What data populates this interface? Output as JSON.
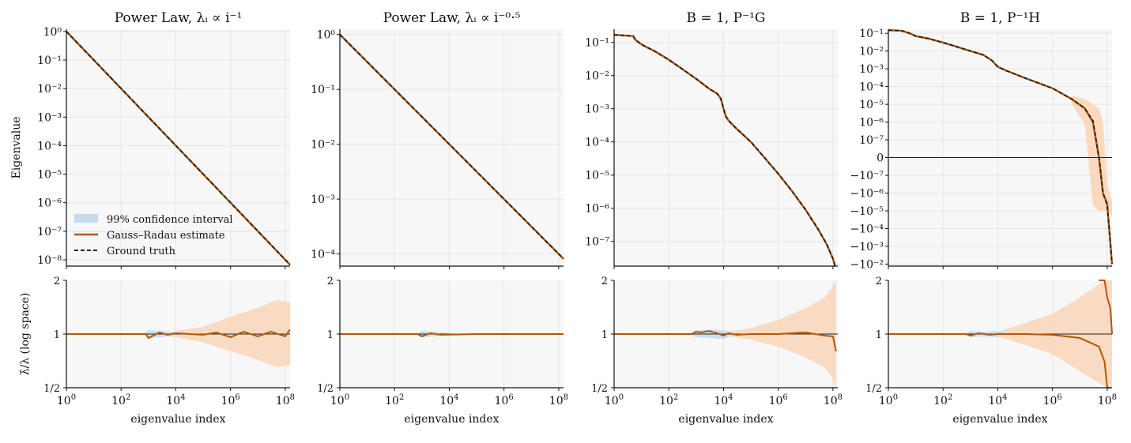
{
  "colors": {
    "estimate": "#b35806",
    "ground_truth": "#222222",
    "ci": "#c6dbef",
    "band": "#f9d5b8",
    "panel_bg": "#f7f7f7",
    "grid": "#e6e6e6"
  },
  "legend": {
    "ci_label": "99% confidence interval",
    "estimate_label": "Gauss–Radau estimate",
    "truth_label": "Ground truth"
  },
  "chart_data": [
    {
      "type": "line",
      "title": "Power Law, λᵢ ∝ i⁻¹",
      "xlabel": "eigenvalue index",
      "ylabel": "Eigenvalue",
      "xscale": "log",
      "yscale": "log",
      "xlim": [
        1,
        150000000
      ],
      "ylim": [
        6e-09,
        1.2
      ],
      "yticks": [
        {
          "v": 1,
          "l": "10⁰"
        },
        {
          "v": 0.1,
          "l": "10⁻¹"
        },
        {
          "v": 0.01,
          "l": "10⁻²"
        },
        {
          "v": 0.001,
          "l": "10⁻³"
        },
        {
          "v": 0.0001,
          "l": "10⁻⁴"
        },
        {
          "v": 1e-05,
          "l": "10⁻⁵"
        },
        {
          "v": 1e-06,
          "l": "10⁻⁶"
        },
        {
          "v": 1e-07,
          "l": "10⁻⁷"
        },
        {
          "v": 1e-08,
          "l": "10⁻⁸"
        }
      ],
      "series": [
        {
          "name": "Gauss–Radau estimate",
          "x": [
            1,
            150000000
          ],
          "y": [
            1,
            6.7e-09
          ]
        },
        {
          "name": "Ground truth",
          "x": [
            1,
            150000000
          ],
          "y": [
            1,
            6.7e-09
          ]
        }
      ],
      "ratio": {
        "ylabel": "λ̂/λ (log space)",
        "yticks": [
          "2",
          "1",
          "1/2"
        ],
        "estimate": {
          "x": [
            1,
            800,
            1000,
            1500,
            2500,
            5000,
            10000,
            30000,
            100000,
            300000,
            1000000,
            3000000,
            10000000,
            30000000,
            100000000,
            150000000
          ],
          "y": [
            1,
            1,
            0.95,
            0.98,
            1.02,
            0.99,
            1.01,
            1,
            0.99,
            1.02,
            0.96,
            1.03,
            0.97,
            1.03,
            0.97,
            1.06
          ]
        },
        "ci": {
          "x": [
            600,
            1000,
            3000,
            10000,
            30000
          ],
          "upper": [
            1.0,
            1.05,
            1.04,
            1.02,
            1.0
          ],
          "lower": [
            1.0,
            0.95,
            0.96,
            0.98,
            1.0
          ]
        },
        "band": {
          "x": [
            1000,
            10000,
            100000,
            1000000,
            10000000,
            50000000,
            150000000
          ],
          "upper": [
            1.0,
            1.04,
            1.1,
            1.25,
            1.4,
            1.55,
            1.5
          ],
          "lower": [
            1.0,
            0.96,
            0.9,
            0.8,
            0.72,
            0.65,
            0.67
          ]
        }
      }
    },
    {
      "type": "line",
      "title": "Power Law, λᵢ ∝ i⁻⁰·⁵",
      "xlabel": "eigenvalue index",
      "ylabel": "",
      "xscale": "log",
      "yscale": "log",
      "xlim": [
        1,
        150000000
      ],
      "ylim": [
        6e-05,
        1.25
      ],
      "yticks": [
        {
          "v": 1,
          "l": "10⁰"
        },
        {
          "v": 0.1,
          "l": "10⁻¹"
        },
        {
          "v": 0.01,
          "l": "10⁻²"
        },
        {
          "v": 0.001,
          "l": "10⁻³"
        },
        {
          "v": 0.0001,
          "l": "10⁻⁴"
        }
      ],
      "series": [
        {
          "name": "Gauss–Radau estimate",
          "x": [
            1,
            150000000
          ],
          "y": [
            1,
            8.16e-05
          ]
        },
        {
          "name": "Ground truth",
          "x": [
            1,
            150000000
          ],
          "y": [
            1,
            8.16e-05
          ]
        }
      ],
      "ratio": {
        "ylabel": "",
        "yticks": [
          "2",
          "1",
          "1/2"
        ],
        "estimate": {
          "x": [
            1,
            700,
            1000,
            2000,
            5000,
            100000,
            150000000
          ],
          "y": [
            1,
            1,
            0.97,
            1.01,
            0.99,
            1,
            1
          ]
        },
        "ci": {
          "x": [
            500,
            1000,
            3000,
            10000,
            20000
          ],
          "upper": [
            1.0,
            1.04,
            1.03,
            1.01,
            1.0
          ],
          "lower": [
            1.0,
            0.96,
            0.97,
            0.99,
            1.0
          ]
        },
        "band": {
          "x": [
            1,
            150000000
          ],
          "upper": [
            1.0,
            1.0
          ],
          "lower": [
            1.0,
            1.0
          ]
        }
      }
    },
    {
      "type": "line",
      "title": "B = 1,  P⁻¹G",
      "xlabel": "eigenvalue index",
      "ylabel": "",
      "xscale": "log",
      "yscale": "log",
      "xlim": [
        1,
        150000000
      ],
      "ylim": [
        1.8e-08,
        0.25
      ],
      "yticks": [
        {
          "v": 0.1,
          "l": "10⁻¹"
        },
        {
          "v": 0.01,
          "l": "10⁻²"
        },
        {
          "v": 0.001,
          "l": "10⁻³"
        },
        {
          "v": 0.0001,
          "l": "10⁻⁴"
        },
        {
          "v": 1e-05,
          "l": "10⁻⁵"
        },
        {
          "v": 1e-06,
          "l": "10⁻⁶"
        },
        {
          "v": 1e-07,
          "l": "10⁻⁷"
        }
      ],
      "series": [
        {
          "name": "Gauss–Radau estimate",
          "x": [
            1,
            3,
            5,
            6,
            8,
            12,
            30,
            100,
            300,
            1000,
            3000,
            6000,
            8000,
            10000,
            12000,
            15000,
            20000,
            30000,
            100000,
            300000,
            1000000,
            3000000,
            10000000,
            30000000,
            60000000,
            100000000,
            120000000
          ],
          "y": [
            0.17,
            0.16,
            0.155,
            0.12,
            0.1,
            0.08,
            0.055,
            0.03,
            0.016,
            0.008,
            0.004,
            0.0028,
            0.002,
            0.001,
            0.0006,
            0.00045,
            0.00035,
            0.00025,
            0.0001,
            3.5e-05,
            1.1e-05,
            3.5e-06,
            9e-07,
            2.2e-07,
            8e-08,
            3e-08,
            1.8e-08
          ]
        },
        {
          "name": "Ground truth",
          "x": [
            1,
            3,
            5,
            6,
            8,
            12,
            30,
            100,
            300,
            1000,
            3000,
            6000,
            8000,
            10000,
            12000,
            15000,
            20000,
            30000,
            100000,
            300000,
            1000000,
            3000000,
            10000000,
            30000000,
            60000000,
            100000000,
            120000000
          ],
          "y": [
            0.17,
            0.16,
            0.155,
            0.12,
            0.1,
            0.08,
            0.055,
            0.03,
            0.016,
            0.008,
            0.004,
            0.0028,
            0.002,
            0.001,
            0.0006,
            0.00045,
            0.00035,
            0.00025,
            0.0001,
            3.5e-05,
            1.1e-05,
            3.5e-06,
            9e-07,
            2.2e-07,
            8e-08,
            3e-08,
            1.8e-08
          ]
        }
      ],
      "ratio": {
        "ylabel": "",
        "yticks": [
          "2",
          "1",
          "1/2"
        ],
        "estimate": {
          "x": [
            1,
            700,
            1000,
            1500,
            3000,
            6000,
            10000,
            15000,
            30000,
            100000,
            1000000,
            10000000,
            50000000,
            100000000,
            130000000
          ],
          "y": [
            1,
            1,
            1.03,
            1.02,
            1.04,
            1.01,
            0.98,
            1.01,
            0.99,
            1,
            1,
            1.02,
            0.98,
            0.97,
            0.8
          ]
        },
        "ci": {
          "x": [
            500,
            1000,
            3000,
            10000,
            30000
          ],
          "upper": [
            1.0,
            1.05,
            1.06,
            1.05,
            1.0
          ],
          "lower": [
            1.0,
            0.96,
            0.95,
            0.94,
            1.0
          ]
        },
        "band": {
          "x": [
            1000,
            10000,
            100000,
            1000000,
            10000000,
            50000000,
            100000000,
            130000000
          ],
          "upper": [
            1.0,
            1.02,
            1.08,
            1.2,
            1.4,
            1.6,
            1.85,
            2.0
          ],
          "lower": [
            1.0,
            0.98,
            0.93,
            0.85,
            0.74,
            0.65,
            0.56,
            0.5
          ]
        }
      }
    },
    {
      "type": "line",
      "title": "B = 1,  P⁻¹H",
      "xlabel": "eigenvalue index",
      "ylabel": "",
      "xscale": "symlog",
      "yscale": "symlog",
      "xlim": [
        1,
        150000000
      ],
      "yticks": [
        {
          "v": 0.1,
          "l": "10⁻¹"
        },
        {
          "v": 0.01,
          "l": "10⁻²"
        },
        {
          "v": 0.001,
          "l": "10⁻³"
        },
        {
          "v": 0.0001,
          "l": "10⁻⁴"
        },
        {
          "v": 1e-05,
          "l": "10⁻⁵"
        },
        {
          "v": 1e-06,
          "l": "10⁻⁶"
        },
        {
          "v": 1e-07,
          "l": "10⁻⁷"
        },
        {
          "v": 0,
          "l": "0"
        },
        {
          "v": -1e-07,
          "l": "−10⁻⁷"
        },
        {
          "v": -1e-06,
          "l": "−10⁻⁶"
        },
        {
          "v": -1e-05,
          "l": "−10⁻⁵"
        },
        {
          "v": -0.0001,
          "l": "−10⁻⁴"
        },
        {
          "v": -0.001,
          "l": "−10⁻³"
        },
        {
          "v": -0.01,
          "l": "−10⁻²"
        }
      ],
      "series": [
        {
          "name": "Gauss–Radau estimate",
          "x": [
            1,
            3,
            6,
            10,
            30,
            100,
            300,
            1000,
            3000,
            6000,
            10000,
            20000,
            100000,
            1000000,
            5000000,
            15000000,
            30000000,
            50000000,
            70000000,
            100000000,
            150000000
          ],
          "y": [
            0.15,
            0.14,
            0.1,
            0.07,
            0.05,
            0.03,
            0.018,
            0.01,
            0.006,
            0.003,
            0.0013,
            0.0008,
            0.0003,
            8e-05,
            2e-05,
            6e-06,
            1e-06,
            0,
            -1e-06,
            -4e-06,
            -0.01
          ]
        },
        {
          "name": "Ground truth",
          "x": [
            1,
            3,
            6,
            10,
            30,
            100,
            300,
            1000,
            3000,
            6000,
            10000,
            20000,
            100000,
            1000000,
            5000000,
            15000000,
            30000000,
            50000000,
            70000000,
            100000000,
            150000000
          ],
          "y": [
            0.15,
            0.14,
            0.1,
            0.07,
            0.05,
            0.03,
            0.018,
            0.01,
            0.006,
            0.003,
            0.0013,
            0.0008,
            0.0003,
            8e-05,
            2e-05,
            6e-06,
            1.2e-06,
            0,
            -1e-06,
            -5e-06,
            -0.01
          ]
        }
      ],
      "ratio": {
        "ylabel": "",
        "yticks": [
          "2",
          "1",
          "1/2"
        ],
        "estimate": {
          "x": [
            1,
            700,
            1000,
            2000,
            5000,
            10000,
            100000,
            1000000,
            10000000,
            50000000,
            80000000,
            100000000,
            130000000
          ],
          "y": [
            1,
            1,
            0.98,
            1.01,
            0.99,
            1,
            1,
            0.99,
            0.95,
            0.85,
            0.7,
            0.5,
            0.5
          ]
        },
        "ci": {
          "x": [
            500,
            1000,
            3000,
            10000,
            30000
          ],
          "upper": [
            1.0,
            1.04,
            1.03,
            1.04,
            1.0
          ],
          "lower": [
            1.0,
            0.96,
            0.97,
            0.96,
            1.0
          ]
        },
        "band": {
          "x": [
            1000,
            10000,
            100000,
            1000000,
            10000000,
            50000000,
            100000000,
            150000000
          ],
          "upper": [
            1.0,
            1.03,
            1.15,
            1.3,
            1.6,
            1.9,
            2.0,
            2.0
          ],
          "lower": [
            1.0,
            0.97,
            0.87,
            0.77,
            0.62,
            0.53,
            0.5,
            0.5
          ]
        },
        "extra_estimate": {
          "x": [
            50000000,
            80000000,
            100000000,
            130000000,
            150000000
          ],
          "y": [
            2.0,
            2.0,
            1.6,
            1.4,
            1.0
          ]
        }
      }
    }
  ]
}
